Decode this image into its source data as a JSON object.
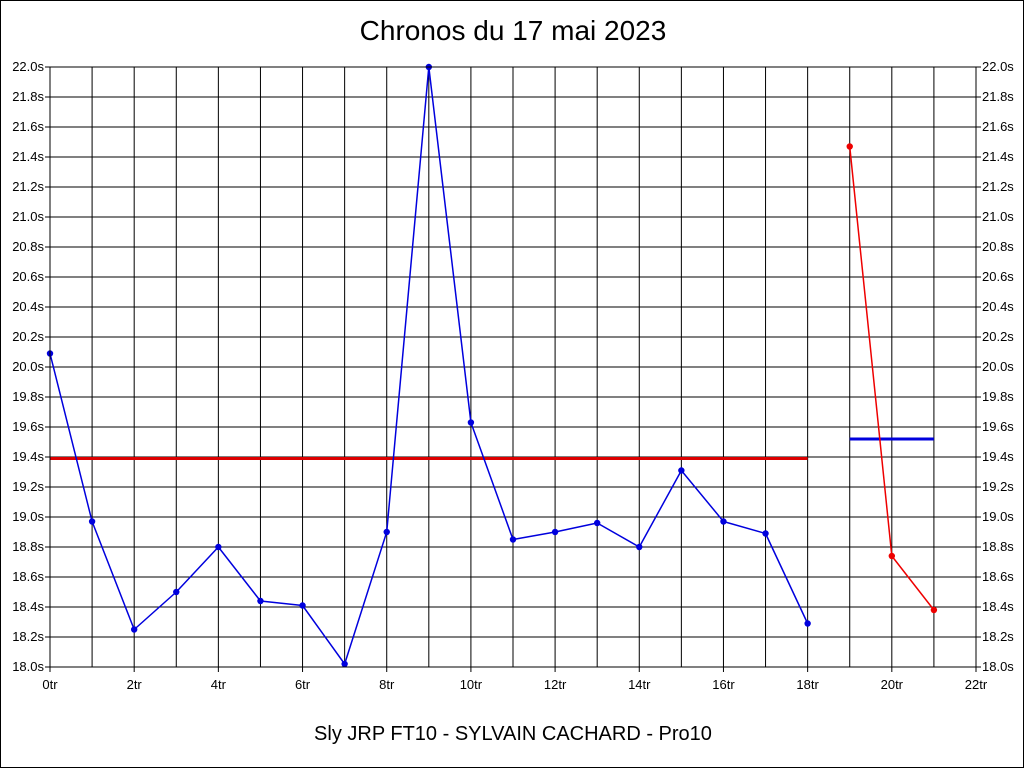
{
  "chart_data": {
    "type": "line",
    "title": "Chronos du 17 mai 2023",
    "footer": "Sly JRP FT10 - SYLVAIN CACHARD - Pro10",
    "xlabel": "",
    "ylabel": "",
    "xlim": [
      0,
      22
    ],
    "ylim": [
      18.0,
      22.0
    ],
    "grid": true,
    "x_ticks": [
      {
        "value": 0,
        "label": "0tr"
      },
      {
        "value": 2,
        "label": "2tr"
      },
      {
        "value": 4,
        "label": "4tr"
      },
      {
        "value": 6,
        "label": "6tr"
      },
      {
        "value": 8,
        "label": "8tr"
      },
      {
        "value": 10,
        "label": "10tr"
      },
      {
        "value": 12,
        "label": "12tr"
      },
      {
        "value": 14,
        "label": "14tr"
      },
      {
        "value": 16,
        "label": "16tr"
      },
      {
        "value": 18,
        "label": "18tr"
      },
      {
        "value": 20,
        "label": "20tr"
      },
      {
        "value": 22,
        "label": "22tr"
      }
    ],
    "x_minor_grid": [
      1,
      3,
      5,
      7,
      9,
      11,
      13,
      15,
      17,
      19,
      21
    ],
    "y_ticks": [
      {
        "value": 18.0,
        "label": "18.0s"
      },
      {
        "value": 18.2,
        "label": "18.2s"
      },
      {
        "value": 18.4,
        "label": "18.4s"
      },
      {
        "value": 18.6,
        "label": "18.6s"
      },
      {
        "value": 18.8,
        "label": "18.8s"
      },
      {
        "value": 19.0,
        "label": "19.0s"
      },
      {
        "value": 19.2,
        "label": "19.2s"
      },
      {
        "value": 19.4,
        "label": "19.4s"
      },
      {
        "value": 19.6,
        "label": "19.6s"
      },
      {
        "value": 19.8,
        "label": "19.8s"
      },
      {
        "value": 20.0,
        "label": "20.0s"
      },
      {
        "value": 20.2,
        "label": "20.2s"
      },
      {
        "value": 20.4,
        "label": "20.4s"
      },
      {
        "value": 20.6,
        "label": "20.6s"
      },
      {
        "value": 20.8,
        "label": "20.8s"
      },
      {
        "value": 21.0,
        "label": "21.0s"
      },
      {
        "value": 21.2,
        "label": "21.2s"
      },
      {
        "value": 21.4,
        "label": "21.4s"
      },
      {
        "value": 21.6,
        "label": "21.6s"
      },
      {
        "value": 21.8,
        "label": "21.8s"
      },
      {
        "value": 22.0,
        "label": "22.0s"
      }
    ],
    "series": [
      {
        "color": "#0000dd",
        "x": [
          0,
          1,
          2,
          3,
          4,
          5,
          6,
          7,
          8,
          9,
          10,
          11,
          12,
          13,
          14,
          15,
          16,
          17,
          18
        ],
        "y": [
          20.09,
          18.97,
          18.25,
          18.5,
          18.8,
          18.44,
          18.41,
          18.02,
          18.9,
          22.0,
          19.63,
          18.85,
          18.9,
          18.96,
          18.8,
          19.31,
          18.97,
          18.89,
          18.29
        ]
      },
      {
        "color": "#ee0000",
        "x": [
          19,
          20,
          21
        ],
        "y": [
          21.47,
          18.74,
          18.38
        ]
      }
    ],
    "reference_lines": [
      {
        "color": "#dd0000",
        "x_start": 0,
        "x_end": 18,
        "y": 19.39
      },
      {
        "color": "#0000dd",
        "x_start": 19,
        "x_end": 21,
        "y": 19.52
      }
    ]
  }
}
